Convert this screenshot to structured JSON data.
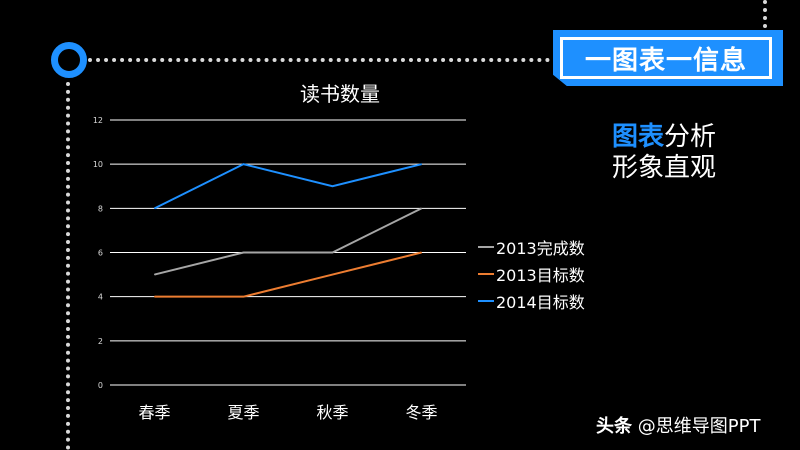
{
  "banner": {
    "title": "一图表一信息"
  },
  "tagline": {
    "highlight": "图表",
    "line1_rest": "分析",
    "line2": "形象直观"
  },
  "watermark": {
    "brand": "头条",
    "handle": "@思维导图PPT"
  },
  "colors": {
    "accent": "#1e90ff",
    "ring": "#1e90ff",
    "grid": "#ffffff"
  },
  "chart_data": {
    "type": "line",
    "title": "读书数量",
    "categories": [
      "春季",
      "夏季",
      "秋季",
      "冬季"
    ],
    "yticks": [
      "0",
      "2",
      "4",
      "6",
      "8",
      "10",
      "12"
    ],
    "ylim": [
      0,
      12
    ],
    "grid": true,
    "legend_position": "right",
    "series": [
      {
        "name": "2013完成数",
        "color": "#a6a6a6",
        "values": [
          5,
          6,
          6,
          8
        ]
      },
      {
        "name": "2013目标数",
        "color": "#ed7d31",
        "values": [
          4,
          4,
          5,
          6
        ]
      },
      {
        "name": "2014目标数",
        "color": "#1e90ff",
        "values": [
          8,
          10,
          9,
          10
        ]
      }
    ]
  }
}
